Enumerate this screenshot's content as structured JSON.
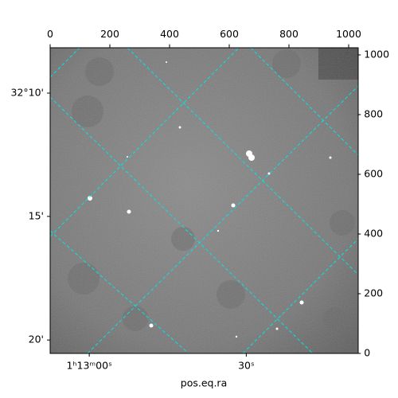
{
  "chart_data": {
    "type": "image",
    "xlabel": "pos.eq.ra",
    "xlim": [
      0,
      1030
    ],
    "ylim": [
      0,
      1025
    ],
    "xticks": [
      0,
      200,
      400,
      600,
      800,
      1000
    ],
    "y2ticks": [
      0,
      200,
      400,
      600,
      800,
      1000
    ],
    "ra_ticks": [
      {
        "value": 131,
        "label": "1ʰ13ᵐ00ˢ"
      },
      {
        "value": 657,
        "label": "30ˢ"
      }
    ],
    "dec_ticks": [
      {
        "value": 872,
        "label": "32°10'"
      },
      {
        "value": 459,
        "label": "15'"
      },
      {
        "value": 45,
        "label": "20'"
      }
    ]
  }
}
